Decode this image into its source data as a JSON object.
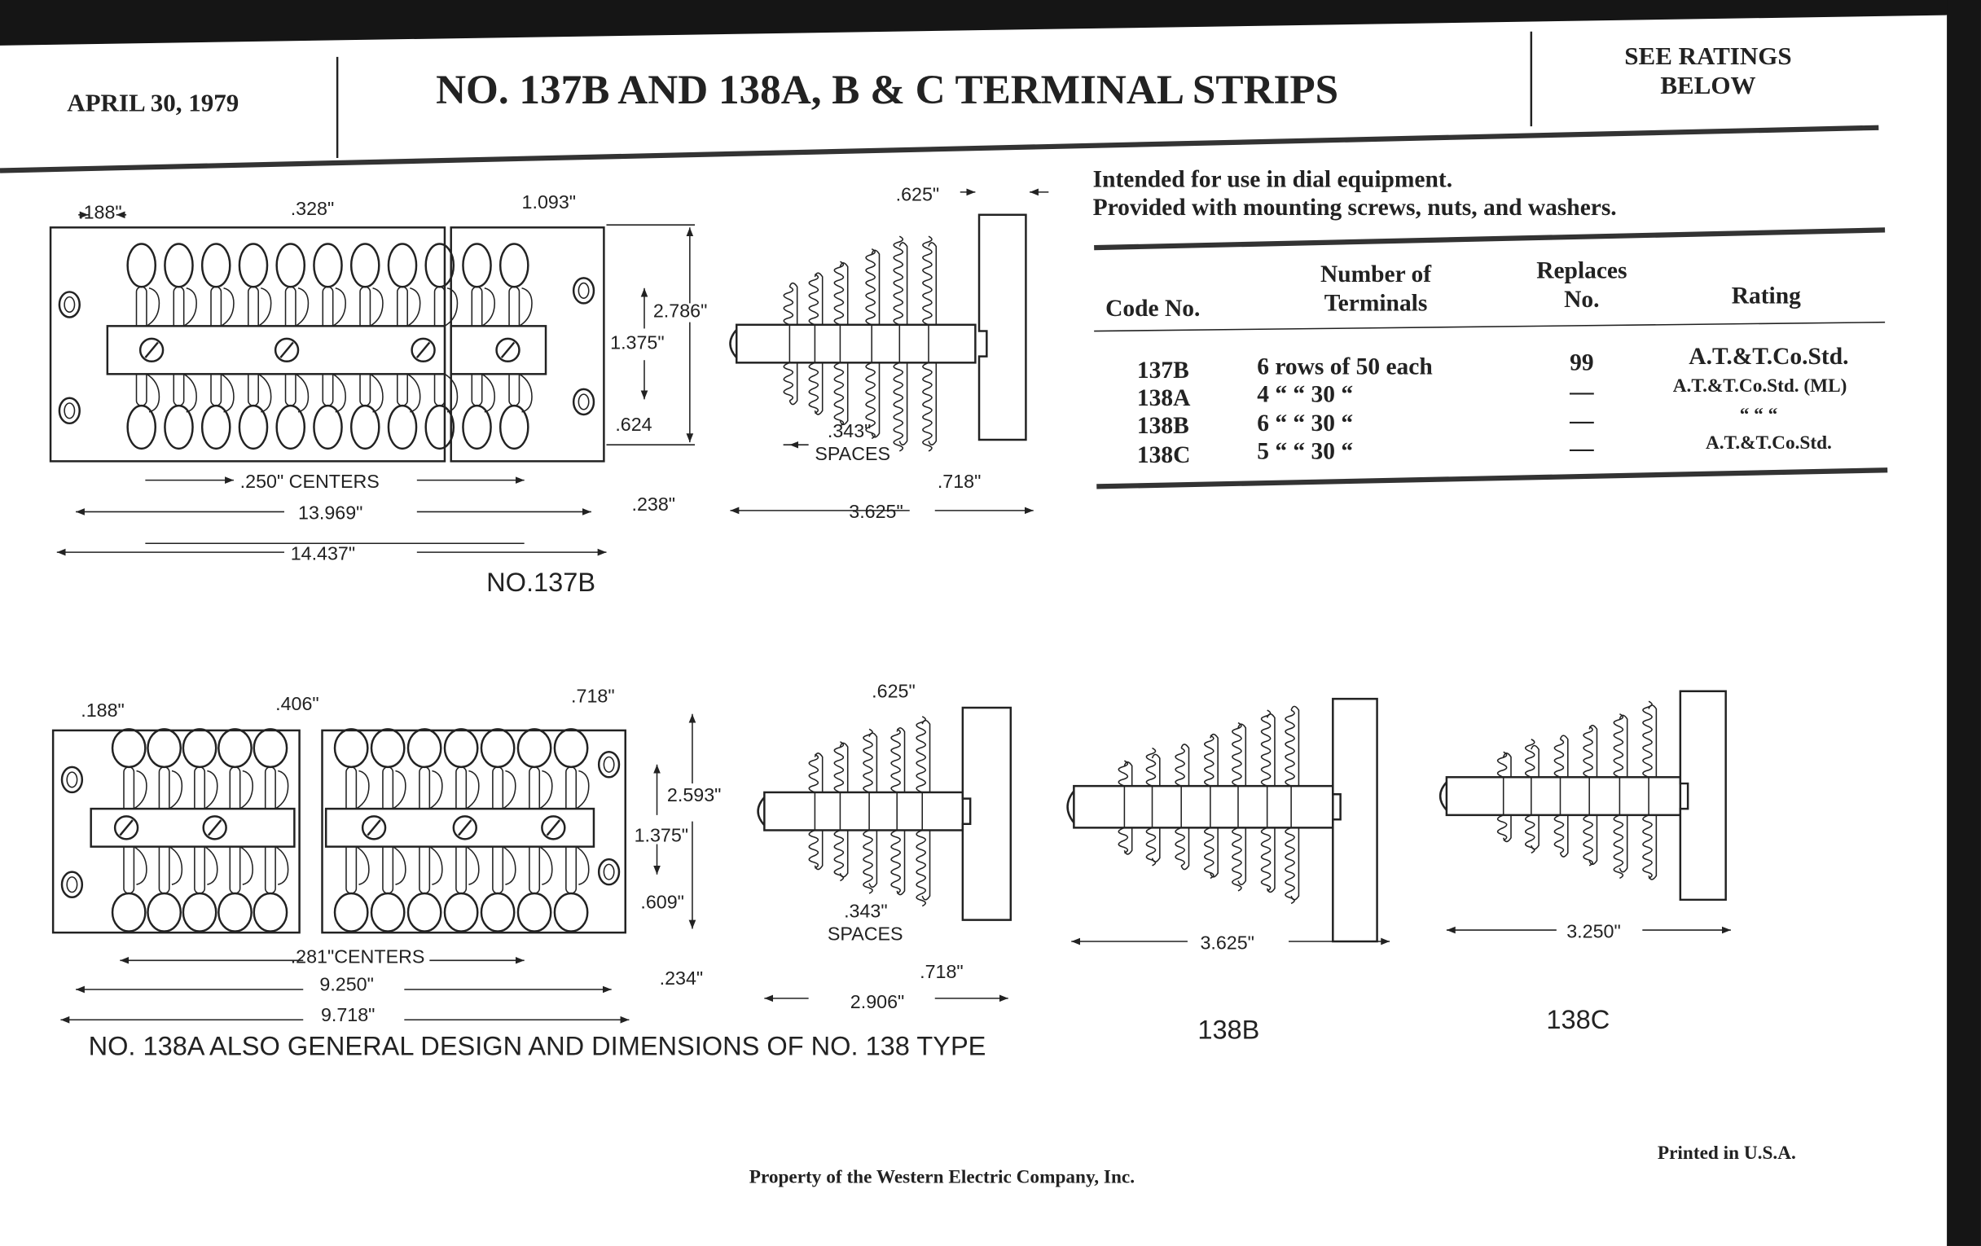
{
  "header": {
    "date": "APRIL 30, 1979",
    "title": "NO. 137B AND 138A, B & C TERMINAL STRIPS",
    "ratings_note_line1": "SEE RATINGS",
    "ratings_note_line2": "BELOW"
  },
  "intro": {
    "line1": "Intended for use in dial equipment.",
    "line2": "Provided with mounting screws, nuts, and washers."
  },
  "table": {
    "headers": {
      "code": "Code No.",
      "terminals_line1": "Number of",
      "terminals_line2": "Terminals",
      "replaces_line1": "Replaces",
      "replaces_line2": "No.",
      "rating": "Rating"
    },
    "rows": [
      {
        "code": "137B",
        "terminals": "6 rows of 50 each",
        "replaces": "99",
        "rating": "A.T.&T.Co.Std."
      },
      {
        "code": "138A",
        "terminals": "4  “   “ 30  “",
        "replaces": "—",
        "rating": "A.T.&T.Co.Std. (ML)"
      },
      {
        "code": "138B",
        "terminals": "6  “   “ 30  “",
        "replaces": "—",
        "rating": "“          “      “"
      },
      {
        "code": "138C",
        "terminals": "5  “   “ 30  “",
        "replaces": "—",
        "rating": "A.T.&T.Co.Std."
      }
    ]
  },
  "drawing_137b": {
    "label": "NO.137B",
    "dims": {
      "d188": ".188\"",
      "d328": ".328\"",
      "d1093": "1.093\"",
      "d2786": "2.786\"",
      "d1375": "1.375\"",
      "d624": ".624",
      "centers": ".250\" CENTERS",
      "d13969": "13.969\"",
      "d238": ".238\"",
      "d14437": "14.437\"",
      "d625": ".625\"",
      "d343": ".343\"",
      "spaces": "SPACES",
      "d718": ".718\"",
      "d3625": "3.625\""
    }
  },
  "drawing_138a": {
    "note": "NO. 138A ALSO GENERAL DESIGN AND DIMENSIONS OF NO. 138 TYPE",
    "dims": {
      "d188": ".188\"",
      "d406": ".406\"",
      "d718top": ".718\"",
      "d2593": "2.593\"",
      "d1375": "1.375\"",
      "d609": ".609\"",
      "centers": ".281\"CENTERS",
      "d9250": "9.250\"",
      "d234": ".234\"",
      "d9718": "9.718\"",
      "d625": ".625\"",
      "d343": ".343\"",
      "spaces": "SPACES",
      "d718": ".718\"",
      "d2906": "2.906\""
    }
  },
  "drawing_138b": {
    "label": "138B",
    "dim": "3.625\""
  },
  "drawing_138c": {
    "label": "138C",
    "dim": "3.250\""
  },
  "footer": {
    "property": "Property of the Western Electric Company, Inc.",
    "printed": "Printed in U.S.A."
  }
}
